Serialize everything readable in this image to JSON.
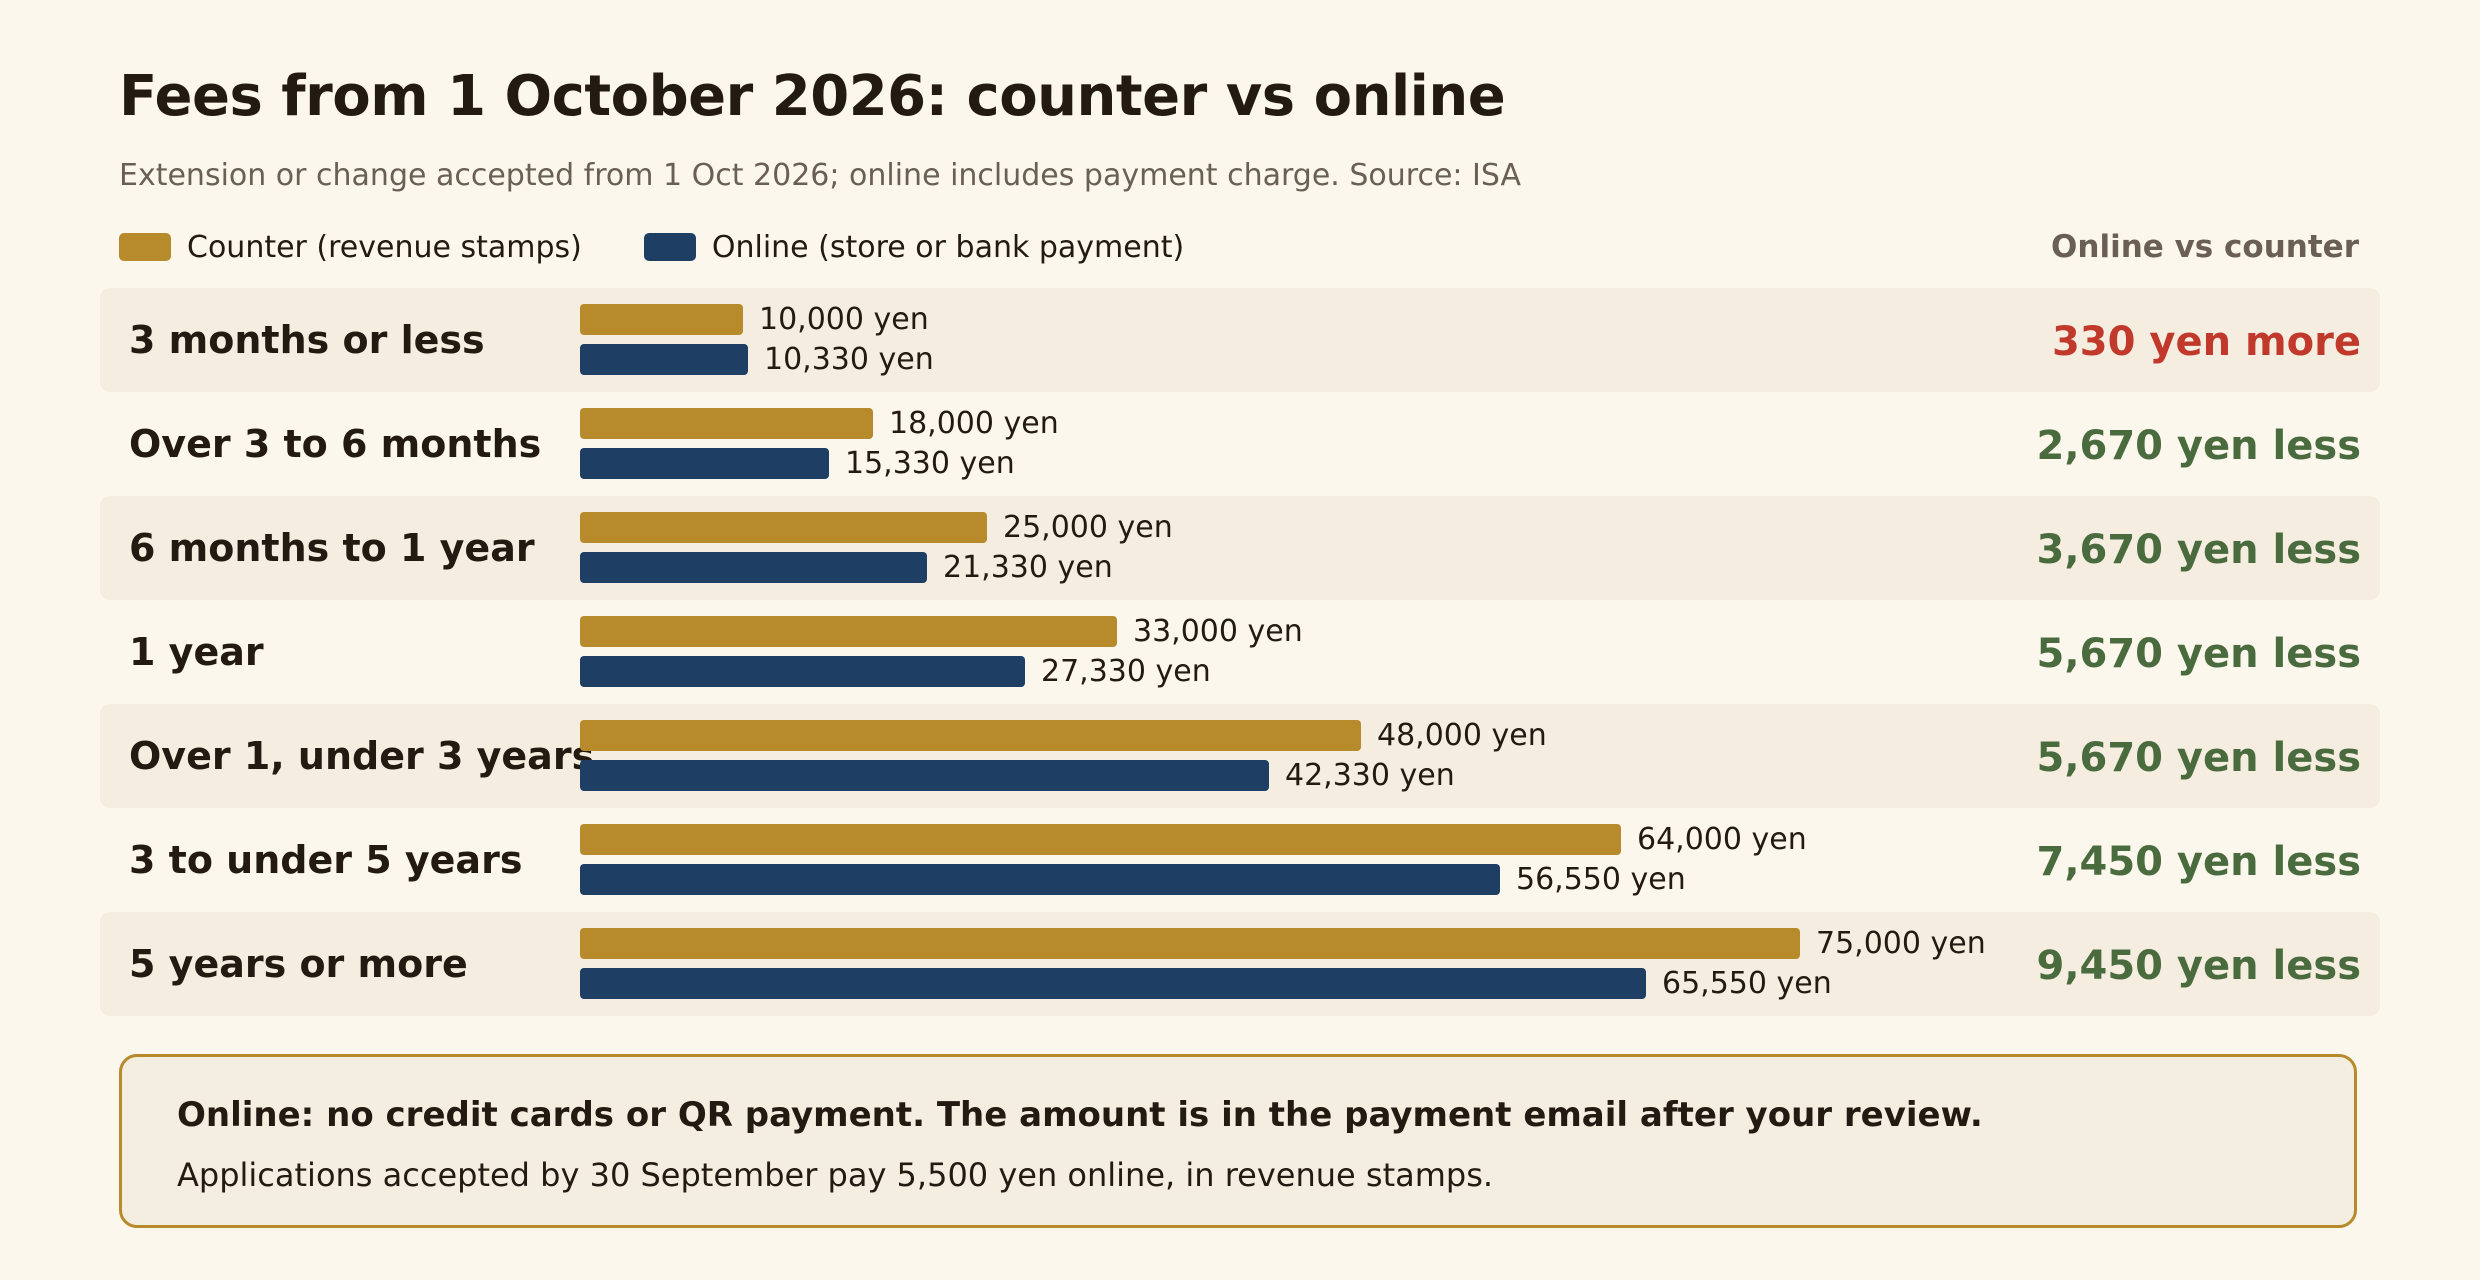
{
  "title": "Fees from 1 October 2026: counter vs online",
  "subtitle": "Extension or change accepted from 1 Oct 2026; online includes payment charge. Source: ISA",
  "legend": {
    "counter": "Counter (revenue stamps)",
    "online": "Online (store or bank payment)"
  },
  "column_header": "Online vs counter",
  "colors": {
    "counter": "#b78a2b",
    "online": "#1e3f63",
    "more": "#c0392b",
    "less": "#4a6b3e"
  },
  "chart_data": {
    "type": "bar",
    "orientation": "horizontal",
    "categories": [
      "3 months or less",
      "Over 3 to 6 months",
      "6 months to 1 year",
      "1 year",
      "Over 1, under 3 years",
      "3 to under 5 years",
      "5 years or more"
    ],
    "series": [
      {
        "name": "Counter (revenue stamps)",
        "values": [
          10000,
          18000,
          25000,
          33000,
          48000,
          64000,
          75000
        ],
        "labels": [
          "10,000 yen",
          "18,000 yen",
          "25,000 yen",
          "33,000 yen",
          "48,000 yen",
          "64,000 yen",
          "75,000 yen"
        ]
      },
      {
        "name": "Online (store or bank payment)",
        "values": [
          10330,
          15330,
          21330,
          27330,
          42330,
          56550,
          65550
        ],
        "labels": [
          "10,330 yen",
          "15,330 yen",
          "21,330 yen",
          "27,330 yen",
          "42,330 yen",
          "56,550 yen",
          "65,550 yen"
        ]
      }
    ],
    "differences": [
      "330 yen more",
      "2,670 yen less",
      "3,670 yen less",
      "5,670 yen less",
      "5,670 yen less",
      "7,450 yen less",
      "9,450 yen less"
    ],
    "difference_direction": [
      "more",
      "less",
      "less",
      "less",
      "less",
      "less",
      "less"
    ],
    "xlim": [
      0,
      75000
    ],
    "grid": false,
    "legend_position": "top-left"
  },
  "note": {
    "bold": "Online: no credit cards or QR payment. The amount is in the payment email after your review.",
    "text": "Applications accepted by 30 September pay 5,500 yen online, in revenue stamps."
  }
}
